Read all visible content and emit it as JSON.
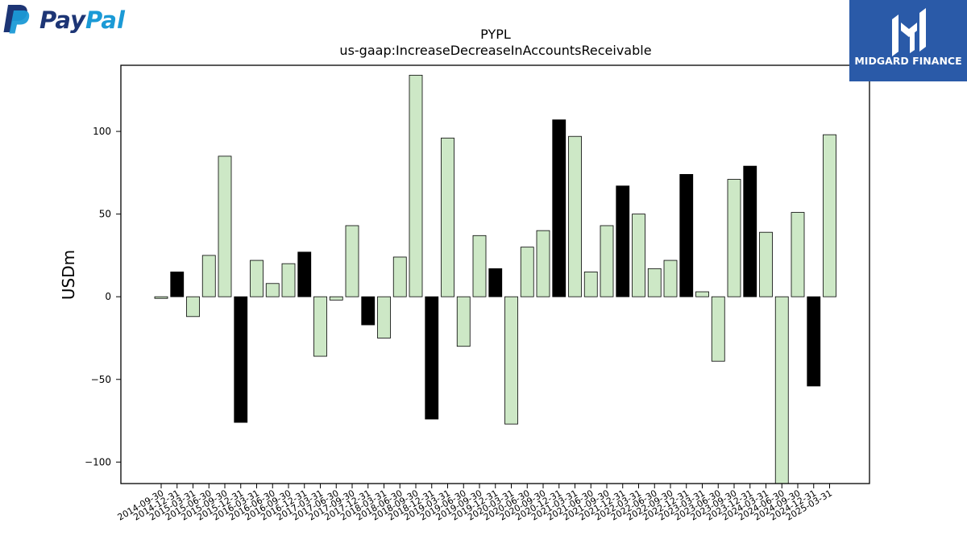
{
  "logos": {
    "left": {
      "brand_pay": "Pay",
      "brand_pal": "Pal",
      "icon": "paypal-p-icon",
      "color_dark": "#1d3575",
      "color_light": "#1b9ad6"
    },
    "right": {
      "name": "MIDGARD FINANCE",
      "icon": "midgard-mark-icon",
      "background": "#2a5aa8"
    }
  },
  "chart_data": {
    "type": "bar",
    "title": "PYPL",
    "subtitle": "us-gaap:IncreaseDecreaseInAccountsReceivable",
    "ylabel": "USDm",
    "xlabel": "",
    "ylim": [
      -113,
      140
    ],
    "yticks": [
      -100,
      -50,
      0,
      50,
      100
    ],
    "grid": false,
    "colors": {
      "quarter": "#cde8c6",
      "year_end": "#000000",
      "edge": "#000000"
    },
    "categories": [
      "2014-09-30",
      "2014-12-31",
      "2015-03-31",
      "2015-06-30",
      "2015-09-30",
      "2015-12-31",
      "2016-03-31",
      "2016-06-30",
      "2016-09-30",
      "2016-12-31",
      "2017-03-31",
      "2017-06-30",
      "2017-09-30",
      "2017-12-31",
      "2018-03-31",
      "2018-06-30",
      "2018-09-30",
      "2018-12-31",
      "2019-03-31",
      "2019-06-30",
      "2019-09-30",
      "2019-12-31",
      "2020-03-31",
      "2020-06-30",
      "2020-09-30",
      "2020-12-31",
      "2021-03-31",
      "2021-06-30",
      "2021-09-30",
      "2021-12-31",
      "2022-03-31",
      "2022-06-30",
      "2022-09-30",
      "2022-12-31",
      "2023-03-31",
      "2023-06-30",
      "2023-09-30",
      "2023-12-31",
      "2024-03-31",
      "2024-06-30",
      "2024-09-30",
      "2024-12-31",
      "2025-03-31"
    ],
    "values": [
      -1,
      15,
      -12,
      25,
      85,
      -76,
      22,
      8,
      20,
      27,
      -36,
      -2,
      43,
      -17,
      -25,
      24,
      134,
      -74,
      96,
      -30,
      37,
      17,
      -77,
      30,
      40,
      107,
      97,
      15,
      43,
      67,
      50,
      17,
      22,
      74,
      3,
      -39,
      71,
      79,
      39,
      -113,
      51,
      -54,
      98
    ],
    "year_end": [
      false,
      true,
      false,
      false,
      false,
      true,
      false,
      false,
      false,
      true,
      false,
      false,
      false,
      true,
      false,
      false,
      false,
      true,
      false,
      false,
      false,
      true,
      false,
      false,
      false,
      true,
      false,
      false,
      false,
      true,
      false,
      false,
      false,
      true,
      false,
      false,
      false,
      true,
      false,
      false,
      false,
      true,
      false
    ]
  }
}
